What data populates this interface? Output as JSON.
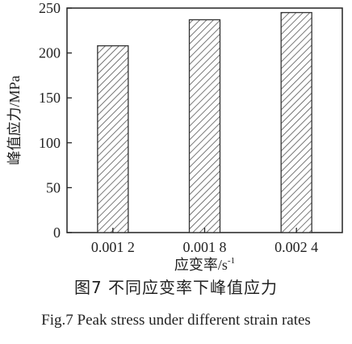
{
  "chart_data": {
    "type": "bar",
    "categories": [
      "0.001 2",
      "0.001 8",
      "0.002 4"
    ],
    "values": [
      208,
      237,
      245
    ],
    "ylim": [
      0,
      250
    ],
    "yticks": [
      0,
      50,
      100,
      150,
      200,
      250
    ],
    "ylabel": "峰值应力/MPa",
    "xlabel": "应变率/s",
    "xlabel_sup": "-1",
    "bar_style": "diagonal hatch",
    "grid": false,
    "legend": "none"
  },
  "caption": {
    "zh": "图7  不同应变率下峰值应力",
    "en": "Fig.7  Peak stress under different strain rates"
  },
  "colors": {
    "axis": "#222222",
    "bar_outline": "#333333",
    "hatch": "#555555",
    "bar_fill": "#ffffff"
  }
}
